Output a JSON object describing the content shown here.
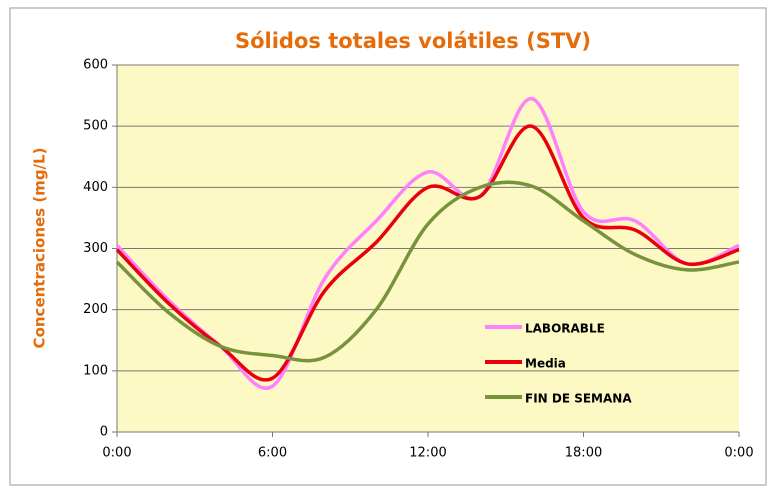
{
  "chart_data": {
    "type": "line",
    "title": "Sólidos totales volátiles (STV)",
    "y_label": "Concentraciones (mg/L)",
    "x": [
      0,
      2,
      4,
      6,
      8,
      10,
      12,
      14,
      16,
      18,
      20,
      22,
      24
    ],
    "xlim": [
      0,
      24
    ],
    "xticks": [
      {
        "value": 0,
        "label": "0:00"
      },
      {
        "value": 6,
        "label": "6:00"
      },
      {
        "value": 12,
        "label": "12:00"
      },
      {
        "value": 18,
        "label": "18:00"
      },
      {
        "value": 24,
        "label": "0:00"
      }
    ],
    "ylim": [
      0,
      600
    ],
    "yticks": [
      0,
      100,
      200,
      300,
      400,
      500,
      600
    ],
    "grid": true,
    "legend": "right",
    "series": [
      {
        "name": "LABORABLE",
        "color": "#ff80ff",
        "values": [
          305,
          215,
          140,
          75,
          250,
          345,
          425,
          385,
          545,
          360,
          345,
          275,
          305
        ]
      },
      {
        "name": "Media",
        "color": "#e8000b",
        "values": [
          298,
          210,
          140,
          88,
          230,
          310,
          400,
          385,
          500,
          350,
          330,
          275,
          298
        ]
      },
      {
        "name": "FIN DE SEMANA",
        "color": "#77933c",
        "values": [
          278,
          195,
          140,
          125,
          122,
          200,
          340,
          400,
          402,
          345,
          290,
          265,
          278
        ]
      }
    ]
  }
}
